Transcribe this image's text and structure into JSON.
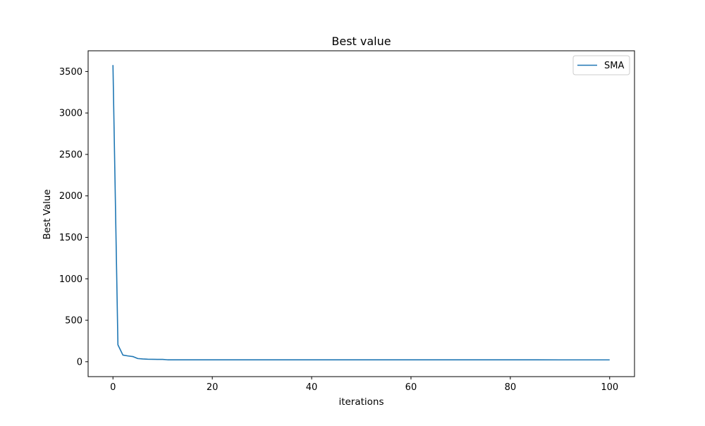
{
  "chart_data": {
    "type": "line",
    "title": "Best value",
    "xlabel": "iterations",
    "ylabel": "Best Value",
    "xlim": [
      -5,
      105
    ],
    "ylim": [
      -180,
      3750
    ],
    "xticks": [
      0,
      20,
      40,
      60,
      80,
      100
    ],
    "yticks": [
      0,
      500,
      1000,
      1500,
      2000,
      2500,
      3000,
      3500
    ],
    "grid": false,
    "legend": "top-right",
    "series": [
      {
        "name": "SMA",
        "color": "#1f77b4",
        "x": [
          0,
          1,
          2,
          3,
          4,
          5,
          6,
          7,
          8,
          9,
          10,
          11,
          12,
          13,
          14,
          15,
          20,
          30,
          40,
          50,
          60,
          70,
          80,
          90,
          100
        ],
        "y": [
          3578,
          204,
          80,
          70,
          62,
          38,
          33,
          30,
          29,
          28,
          28,
          23,
          23,
          23,
          23,
          23,
          23,
          23,
          23,
          23,
          23,
          23,
          23,
          22,
          22
        ]
      }
    ]
  }
}
